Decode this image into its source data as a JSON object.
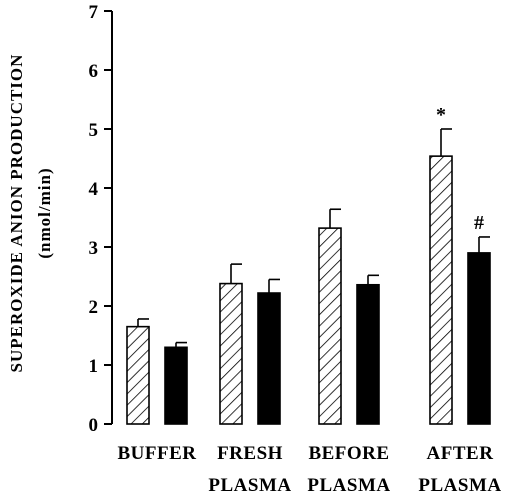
{
  "chart_data": {
    "type": "bar",
    "title": "",
    "ylabel_line1": "SUPEROXIDE ANION PRODUCTION",
    "ylabel_line2": "(nmol/min)",
    "xlabel": "",
    "ylim": [
      0,
      7
    ],
    "yticks": [
      0,
      1,
      2,
      3,
      4,
      5,
      6,
      7
    ],
    "grid": false,
    "legend": "none",
    "categories": [
      {
        "line1": "BUFFER",
        "line2": ""
      },
      {
        "line1": "FRESH",
        "line2": "PLASMA"
      },
      {
        "line1": "BEFORE",
        "line2": "PLASMA"
      },
      {
        "line1": "AFTER",
        "line2": "PLASMA"
      }
    ],
    "series": [
      {
        "fill": "hatched",
        "color": "#000000",
        "values": [
          1.65,
          2.38,
          3.32,
          4.54
        ],
        "errors": [
          0.13,
          0.33,
          0.32,
          0.46
        ]
      },
      {
        "fill": "solid",
        "color": "#000000",
        "values": [
          1.3,
          2.22,
          2.36,
          2.9
        ],
        "errors": [
          0.08,
          0.23,
          0.16,
          0.27
        ]
      }
    ],
    "annotations": [
      {
        "text": "*",
        "category_index": 3,
        "series_index": 0
      },
      {
        "text": "#",
        "category_index": 3,
        "series_index": 1
      }
    ]
  }
}
